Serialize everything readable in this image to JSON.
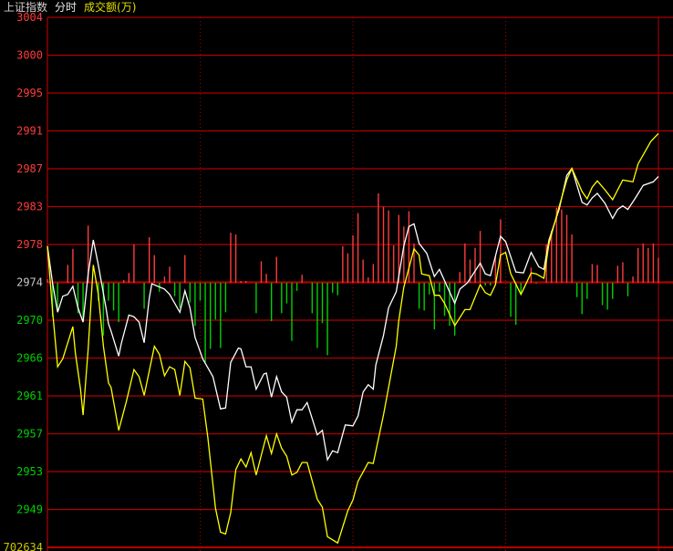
{
  "header": {
    "index_name": "上证指数",
    "mode": "分时",
    "indicator": "成交额(万)"
  },
  "colors": {
    "background": "#000000",
    "grid": "#b00000",
    "up": "#ff3b3b",
    "down": "#00d000",
    "index_line": "#ffffff",
    "avg_line": "#ffff00",
    "neutral_label": "#c8c8c8",
    "volume_label": "#c8c800"
  },
  "chart_data": {
    "type": "line",
    "base_price": 2974,
    "y_tick_labels": [
      "3004",
      "3000",
      "2995",
      "2991",
      "2987",
      "2983",
      "2978",
      "2974",
      "2970",
      "2966",
      "2961",
      "2957",
      "2953",
      "2949"
    ],
    "volume_label": "702634",
    "x_range_minutes": [
      0,
      240
    ],
    "session_dividers_minutes": [
      60,
      120,
      180,
      240
    ],
    "grid": true,
    "series": [
      {
        "line": "white",
        "points": [
          [
            0,
            2978.1
          ],
          [
            2,
            2974.0
          ],
          [
            4,
            2970.7
          ],
          [
            6,
            2972.5
          ],
          [
            8,
            2972.7
          ],
          [
            10,
            2973.6
          ],
          [
            12,
            2971.2
          ],
          [
            14,
            2969.6
          ],
          [
            16,
            2975.0
          ],
          [
            18,
            2978.8
          ],
          [
            20,
            2976.0
          ],
          [
            23,
            2971.2
          ],
          [
            24,
            2969.4
          ],
          [
            25,
            2968.6
          ],
          [
            28,
            2965.8
          ],
          [
            29,
            2967.2
          ],
          [
            32,
            2970.4
          ],
          [
            34,
            2970.2
          ],
          [
            36,
            2969.6
          ],
          [
            38,
            2967.3
          ],
          [
            40,
            2972.3
          ],
          [
            41,
            2973.9
          ],
          [
            46,
            2973.3
          ],
          [
            48,
            2972.7
          ],
          [
            52,
            2970.7
          ],
          [
            54,
            2973.1
          ],
          [
            56,
            2971.2
          ],
          [
            58,
            2967.9
          ],
          [
            61,
            2965.5
          ],
          [
            65,
            2963.5
          ],
          [
            68,
            2959.9
          ],
          [
            70,
            2960.0
          ],
          [
            72,
            2965.1
          ],
          [
            75,
            2966.7
          ],
          [
            76,
            2966.6
          ],
          [
            78,
            2964.6
          ],
          [
            80,
            2964.6
          ],
          [
            82,
            2962.1
          ],
          [
            85,
            2963.8
          ],
          [
            86,
            2963.9
          ],
          [
            88,
            2961.2
          ],
          [
            90,
            2963.5
          ],
          [
            92,
            2961.8
          ],
          [
            94,
            2961.2
          ],
          [
            96,
            2958.4
          ],
          [
            98,
            2959.8
          ],
          [
            100,
            2959.8
          ],
          [
            102,
            2960.6
          ],
          [
            106,
            2957.0
          ],
          [
            108,
            2957.5
          ],
          [
            110,
            2954.2
          ],
          [
            112,
            2955.2
          ],
          [
            114,
            2955.0
          ],
          [
            117,
            2958.1
          ],
          [
            120,
            2958.0
          ],
          [
            122,
            2959.1
          ],
          [
            124,
            2961.8
          ],
          [
            126,
            2962.6
          ],
          [
            128,
            2962.1
          ],
          [
            129,
            2964.8
          ],
          [
            132,
            2968.1
          ],
          [
            134,
            2971.2
          ],
          [
            137,
            2973.0
          ],
          [
            140,
            2978.1
          ],
          [
            142,
            2980.3
          ],
          [
            144,
            2980.6
          ],
          [
            146,
            2978.4
          ],
          [
            149,
            2977.3
          ],
          [
            152,
            2974.7
          ],
          [
            154,
            2975.5
          ],
          [
            160,
            2971.7
          ],
          [
            162,
            2973.3
          ],
          [
            165,
            2974.0
          ],
          [
            170,
            2976.2
          ],
          [
            172,
            2975.0
          ],
          [
            174,
            2974.8
          ],
          [
            178,
            2979.2
          ],
          [
            180,
            2978.6
          ],
          [
            182,
            2976.9
          ],
          [
            184,
            2975.2
          ],
          [
            187,
            2975.1
          ],
          [
            190,
            2977.4
          ],
          [
            193,
            2975.8
          ],
          [
            195,
            2975.5
          ],
          [
            197,
            2978.8
          ],
          [
            201,
            2982.2
          ],
          [
            204,
            2986.0
          ],
          [
            206,
            2986.8
          ],
          [
            208,
            2984.9
          ],
          [
            210,
            2983.0
          ],
          [
            212,
            2982.7
          ],
          [
            214,
            2983.5
          ],
          [
            216,
            2984.0
          ],
          [
            219,
            2982.9
          ],
          [
            222,
            2981.2
          ],
          [
            224,
            2982.2
          ],
          [
            226,
            2982.6
          ],
          [
            228,
            2982.2
          ],
          [
            231,
            2983.5
          ],
          [
            234,
            2984.9
          ],
          [
            238,
            2985.3
          ],
          [
            240,
            2985.9
          ]
        ]
      },
      {
        "line": "yellow",
        "points": [
          [
            0,
            2978.1
          ],
          [
            2,
            2970.9
          ],
          [
            4,
            2964.6
          ],
          [
            6,
            2965.5
          ],
          [
            10,
            2969.1
          ],
          [
            11,
            2966.1
          ],
          [
            13,
            2962.1
          ],
          [
            14,
            2959.2
          ],
          [
            16,
            2966.6
          ],
          [
            18,
            2976.0
          ],
          [
            20,
            2972.7
          ],
          [
            22,
            2966.9
          ],
          [
            24,
            2962.8
          ],
          [
            25,
            2962.3
          ],
          [
            28,
            2957.5
          ],
          [
            31,
            2960.7
          ],
          [
            34,
            2964.3
          ],
          [
            36,
            2963.5
          ],
          [
            38,
            2961.4
          ],
          [
            42,
            2966.9
          ],
          [
            44,
            2966.0
          ],
          [
            46,
            2963.6
          ],
          [
            48,
            2964.6
          ],
          [
            50,
            2964.3
          ],
          [
            52,
            2961.4
          ],
          [
            54,
            2965.2
          ],
          [
            56,
            2964.5
          ],
          [
            58,
            2961.1
          ],
          [
            61,
            2961.0
          ],
          [
            63,
            2956.7
          ],
          [
            66,
            2948.8
          ],
          [
            68,
            2946.1
          ],
          [
            70,
            2945.9
          ],
          [
            72,
            2948.3
          ],
          [
            74,
            2953.1
          ],
          [
            76,
            2954.3
          ],
          [
            78,
            2953.4
          ],
          [
            80,
            2955.0
          ],
          [
            82,
            2952.5
          ],
          [
            86,
            2956.9
          ],
          [
            88,
            2954.9
          ],
          [
            90,
            2957.1
          ],
          [
            92,
            2955.5
          ],
          [
            94,
            2954.6
          ],
          [
            96,
            2952.5
          ],
          [
            98,
            2952.8
          ],
          [
            100,
            2953.9
          ],
          [
            102,
            2953.9
          ],
          [
            106,
            2949.8
          ],
          [
            108,
            2948.9
          ],
          [
            110,
            2945.6
          ],
          [
            114,
            2944.9
          ],
          [
            118,
            2948.5
          ],
          [
            120,
            2949.7
          ],
          [
            122,
            2951.8
          ],
          [
            126,
            2953.9
          ],
          [
            128,
            2953.8
          ],
          [
            132,
            2959.2
          ],
          [
            137,
            2966.9
          ],
          [
            138,
            2969.7
          ],
          [
            140,
            2973.5
          ],
          [
            144,
            2977.8
          ],
          [
            146,
            2977.1
          ],
          [
            147,
            2975.0
          ],
          [
            150,
            2974.8
          ],
          [
            152,
            2972.6
          ],
          [
            154,
            2972.6
          ],
          [
            156,
            2971.7
          ],
          [
            160,
            2969.2
          ],
          [
            164,
            2971.0
          ],
          [
            166,
            2971.0
          ],
          [
            170,
            2973.8
          ],
          [
            172,
            2972.9
          ],
          [
            174,
            2972.6
          ],
          [
            176,
            2973.8
          ],
          [
            178,
            2977.1
          ],
          [
            180,
            2977.4
          ],
          [
            182,
            2975.0
          ],
          [
            186,
            2972.7
          ],
          [
            190,
            2975.1
          ],
          [
            192,
            2975.0
          ],
          [
            195,
            2974.5
          ],
          [
            197,
            2978.4
          ],
          [
            201,
            2982.5
          ],
          [
            204,
            2985.5
          ],
          [
            206,
            2986.8
          ],
          [
            210,
            2984.2
          ],
          [
            212,
            2983.4
          ],
          [
            214,
            2984.7
          ],
          [
            216,
            2985.4
          ],
          [
            219,
            2984.4
          ],
          [
            222,
            2983.3
          ],
          [
            226,
            2985.5
          ],
          [
            230,
            2985.3
          ],
          [
            232,
            2987.3
          ],
          [
            237,
            2989.8
          ],
          [
            240,
            2990.7
          ]
        ]
      }
    ],
    "strength_bars": [
      [
        0,
        0.4
      ],
      [
        8,
        2.0
      ],
      [
        10,
        3.8
      ],
      [
        16,
        6.4
      ],
      [
        30,
        0.3
      ],
      [
        32,
        1.1
      ],
      [
        34,
        4.3
      ],
      [
        40,
        5.1
      ],
      [
        42,
        3.1
      ],
      [
        46,
        0.7
      ],
      [
        48,
        1.8
      ],
      [
        54,
        3.1
      ],
      [
        72,
        5.6
      ],
      [
        74,
        5.4
      ],
      [
        76,
        0.2
      ],
      [
        78,
        0.2
      ],
      [
        84,
        2.4
      ],
      [
        86,
        1.0
      ],
      [
        90,
        2.9
      ],
      [
        100,
        0.9
      ],
      [
        116,
        4.1
      ],
      [
        118,
        3.3
      ],
      [
        120,
        5.3
      ],
      [
        122,
        7.8
      ],
      [
        124,
        2.6
      ],
      [
        126,
        0.6
      ],
      [
        128,
        2.1
      ],
      [
        130,
        10.0
      ],
      [
        132,
        8.5
      ],
      [
        134,
        8.1
      ],
      [
        136,
        4.2
      ],
      [
        138,
        7.6
      ],
      [
        140,
        6.3
      ],
      [
        142,
        8.0
      ],
      [
        144,
        4.4
      ],
      [
        162,
        1.2
      ],
      [
        164,
        4.4
      ],
      [
        166,
        2.6
      ],
      [
        168,
        3.9
      ],
      [
        170,
        5.8
      ],
      [
        176,
        3.0
      ],
      [
        178,
        7.1
      ],
      [
        190,
        1.7
      ],
      [
        196,
        4.3
      ],
      [
        198,
        5.8
      ],
      [
        200,
        8.4
      ],
      [
        202,
        8.2
      ],
      [
        204,
        7.6
      ],
      [
        206,
        5.4
      ],
      [
        214,
        2.1
      ],
      [
        216,
        2.0
      ],
      [
        224,
        1.9
      ],
      [
        226,
        2.3
      ],
      [
        230,
        0.7
      ],
      [
        232,
        3.9
      ],
      [
        234,
        4.4
      ],
      [
        236,
        3.9
      ],
      [
        238,
        4.4
      ],
      [
        240,
        2.8
      ],
      [
        2,
        -3.8
      ],
      [
        4,
        -3.1
      ],
      [
        12,
        -3.4
      ],
      [
        14,
        -4.1
      ],
      [
        20,
        -2.0
      ],
      [
        22,
        -5.9
      ],
      [
        24,
        -2.0
      ],
      [
        26,
        -3.1
      ],
      [
        28,
        -4.4
      ],
      [
        38,
        -2.9
      ],
      [
        44,
        -1.0
      ],
      [
        50,
        -1.5
      ],
      [
        52,
        -2.8
      ],
      [
        56,
        -2.2
      ],
      [
        58,
        -4.8
      ],
      [
        60,
        -2.0
      ],
      [
        62,
        -8.9
      ],
      [
        64,
        -7.4
      ],
      [
        66,
        -4.1
      ],
      [
        68,
        -7.3
      ],
      [
        70,
        -3.3
      ],
      [
        82,
        -3.4
      ],
      [
        88,
        -4.3
      ],
      [
        92,
        -3.4
      ],
      [
        94,
        -2.3
      ],
      [
        96,
        -6.5
      ],
      [
        98,
        -0.9
      ],
      [
        104,
        -3.4
      ],
      [
        106,
        -7.3
      ],
      [
        108,
        -4.5
      ],
      [
        110,
        -8.1
      ],
      [
        112,
        -1.1
      ],
      [
        114,
        -1.4
      ],
      [
        146,
        -2.9
      ],
      [
        148,
        -3.1
      ],
      [
        150,
        -1.3
      ],
      [
        152,
        -5.2
      ],
      [
        154,
        -1.0
      ],
      [
        156,
        -3.7
      ],
      [
        158,
        -4.8
      ],
      [
        160,
        -5.9
      ],
      [
        172,
        -0.3
      ],
      [
        174,
        -0.3
      ],
      [
        182,
        -3.8
      ],
      [
        184,
        -4.7
      ],
      [
        186,
        -1.3
      ],
      [
        192,
        -0.1
      ],
      [
        208,
        -1.6
      ],
      [
        210,
        -3.5
      ],
      [
        212,
        -1.8
      ],
      [
        218,
        -2.5
      ],
      [
        220,
        -3.0
      ],
      [
        222,
        -1.8
      ],
      [
        228,
        -1.5
      ]
    ]
  }
}
